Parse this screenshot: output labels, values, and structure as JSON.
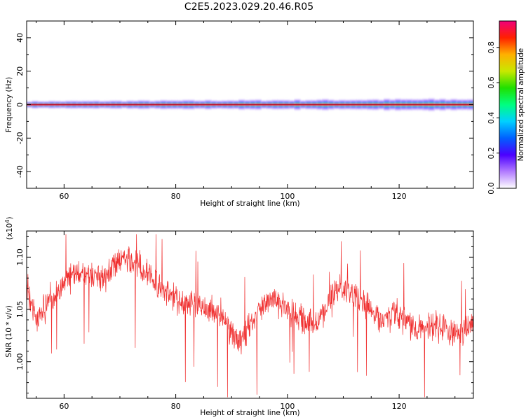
{
  "title": "C2E5.2023.029.20.46.R05",
  "chart_data": [
    {
      "type": "heatmap",
      "xlabel": "Height of straight line (km)",
      "ylabel": "Frequency (Hz)",
      "xlim": [
        53.3,
        133.3
      ],
      "ylim": [
        -50,
        50
      ],
      "xticks": [
        60,
        80,
        100,
        120
      ],
      "yticks": [
        -40,
        -20,
        0,
        20,
        40
      ],
      "yticks_minor_step": 10,
      "band": {
        "center_frequency": 0,
        "half_width_hz": [
          1.5,
          4.0
        ],
        "peak_amplitude": 0.9
      },
      "colorbar": {
        "label": "Normalized spectral amplitude",
        "range": [
          0.0,
          0.95
        ],
        "ticks": [
          0.0,
          0.2,
          0.4,
          0.6,
          0.8
        ],
        "colormap": "rainbow",
        "colors": [
          "#ffffff",
          "#b27bff",
          "#4b00ff",
          "#0060ff",
          "#00d0ff",
          "#00ff80",
          "#20e000",
          "#c8e800",
          "#ffb000",
          "#ff2000",
          "#f0007a"
        ]
      }
    },
    {
      "type": "line",
      "xlabel": "Height of straight line (km)",
      "ylabel": "SNR (10 * v/v)",
      "y_multiplier": "(x10^4)",
      "xlim": [
        53.3,
        133.3
      ],
      "ylim": [
        0.965,
        1.125
      ],
      "xticks": [
        60,
        80,
        100,
        120
      ],
      "yticks": [
        1.0,
        1.05,
        1.1
      ],
      "ytick_labels": [
        "1.00",
        "1.05",
        "1.10"
      ],
      "series": [
        {
          "color": "#f03030",
          "x": [
            53.3,
            55,
            57,
            59,
            61,
            63,
            65,
            67,
            69,
            71,
            73,
            75,
            77,
            79,
            81,
            83,
            85,
            87,
            89,
            91,
            93,
            95,
            97,
            99,
            101,
            103,
            105,
            107,
            109,
            111,
            113,
            115,
            117,
            119,
            121,
            123,
            125,
            127,
            129,
            131,
            133.3
          ],
          "y": [
            1.072,
            1.04,
            1.055,
            1.068,
            1.08,
            1.085,
            1.083,
            1.079,
            1.092,
            1.1,
            1.092,
            1.083,
            1.07,
            1.062,
            1.058,
            1.055,
            1.051,
            1.048,
            1.04,
            1.018,
            1.03,
            1.05,
            1.062,
            1.055,
            1.045,
            1.04,
            1.035,
            1.05,
            1.07,
            1.068,
            1.06,
            1.048,
            1.04,
            1.045,
            1.041,
            1.03,
            1.032,
            1.035,
            1.03,
            1.027,
            1.04
          ],
          "noise_amplitude": 0.014,
          "spike_min": 0.966,
          "spike_max": 1.122
        }
      ]
    }
  ]
}
